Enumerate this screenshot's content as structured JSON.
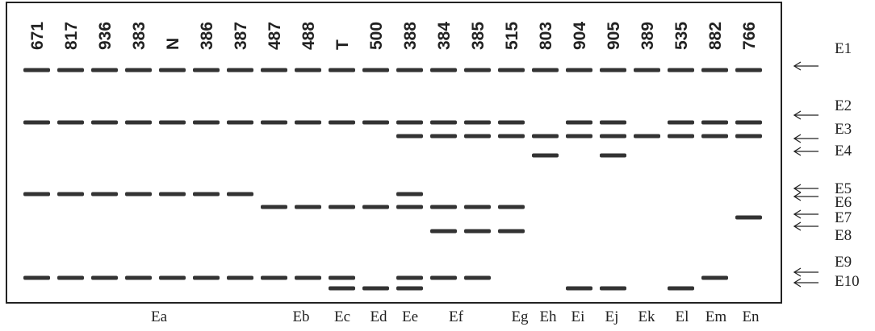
{
  "lanes": [
    "671",
    "817",
    "936",
    "383",
    "N",
    "386",
    "387",
    "487",
    "488",
    "T",
    "500",
    "388",
    "384",
    "385",
    "515",
    "803",
    "904",
    "905",
    "389",
    "535",
    "882",
    "766"
  ],
  "band_labels": [
    "E1",
    "E2",
    "E3",
    "E4",
    "E5",
    "E6",
    "E7",
    "E8",
    "E9",
    "E10"
  ],
  "groups": [
    "Ea",
    "Eb",
    "Ec",
    "Ed",
    "Ee",
    "Ef",
    "Eg",
    "Eh",
    "Ei",
    "Ej",
    "Ek",
    "El",
    "Em",
    "En"
  ]
}
